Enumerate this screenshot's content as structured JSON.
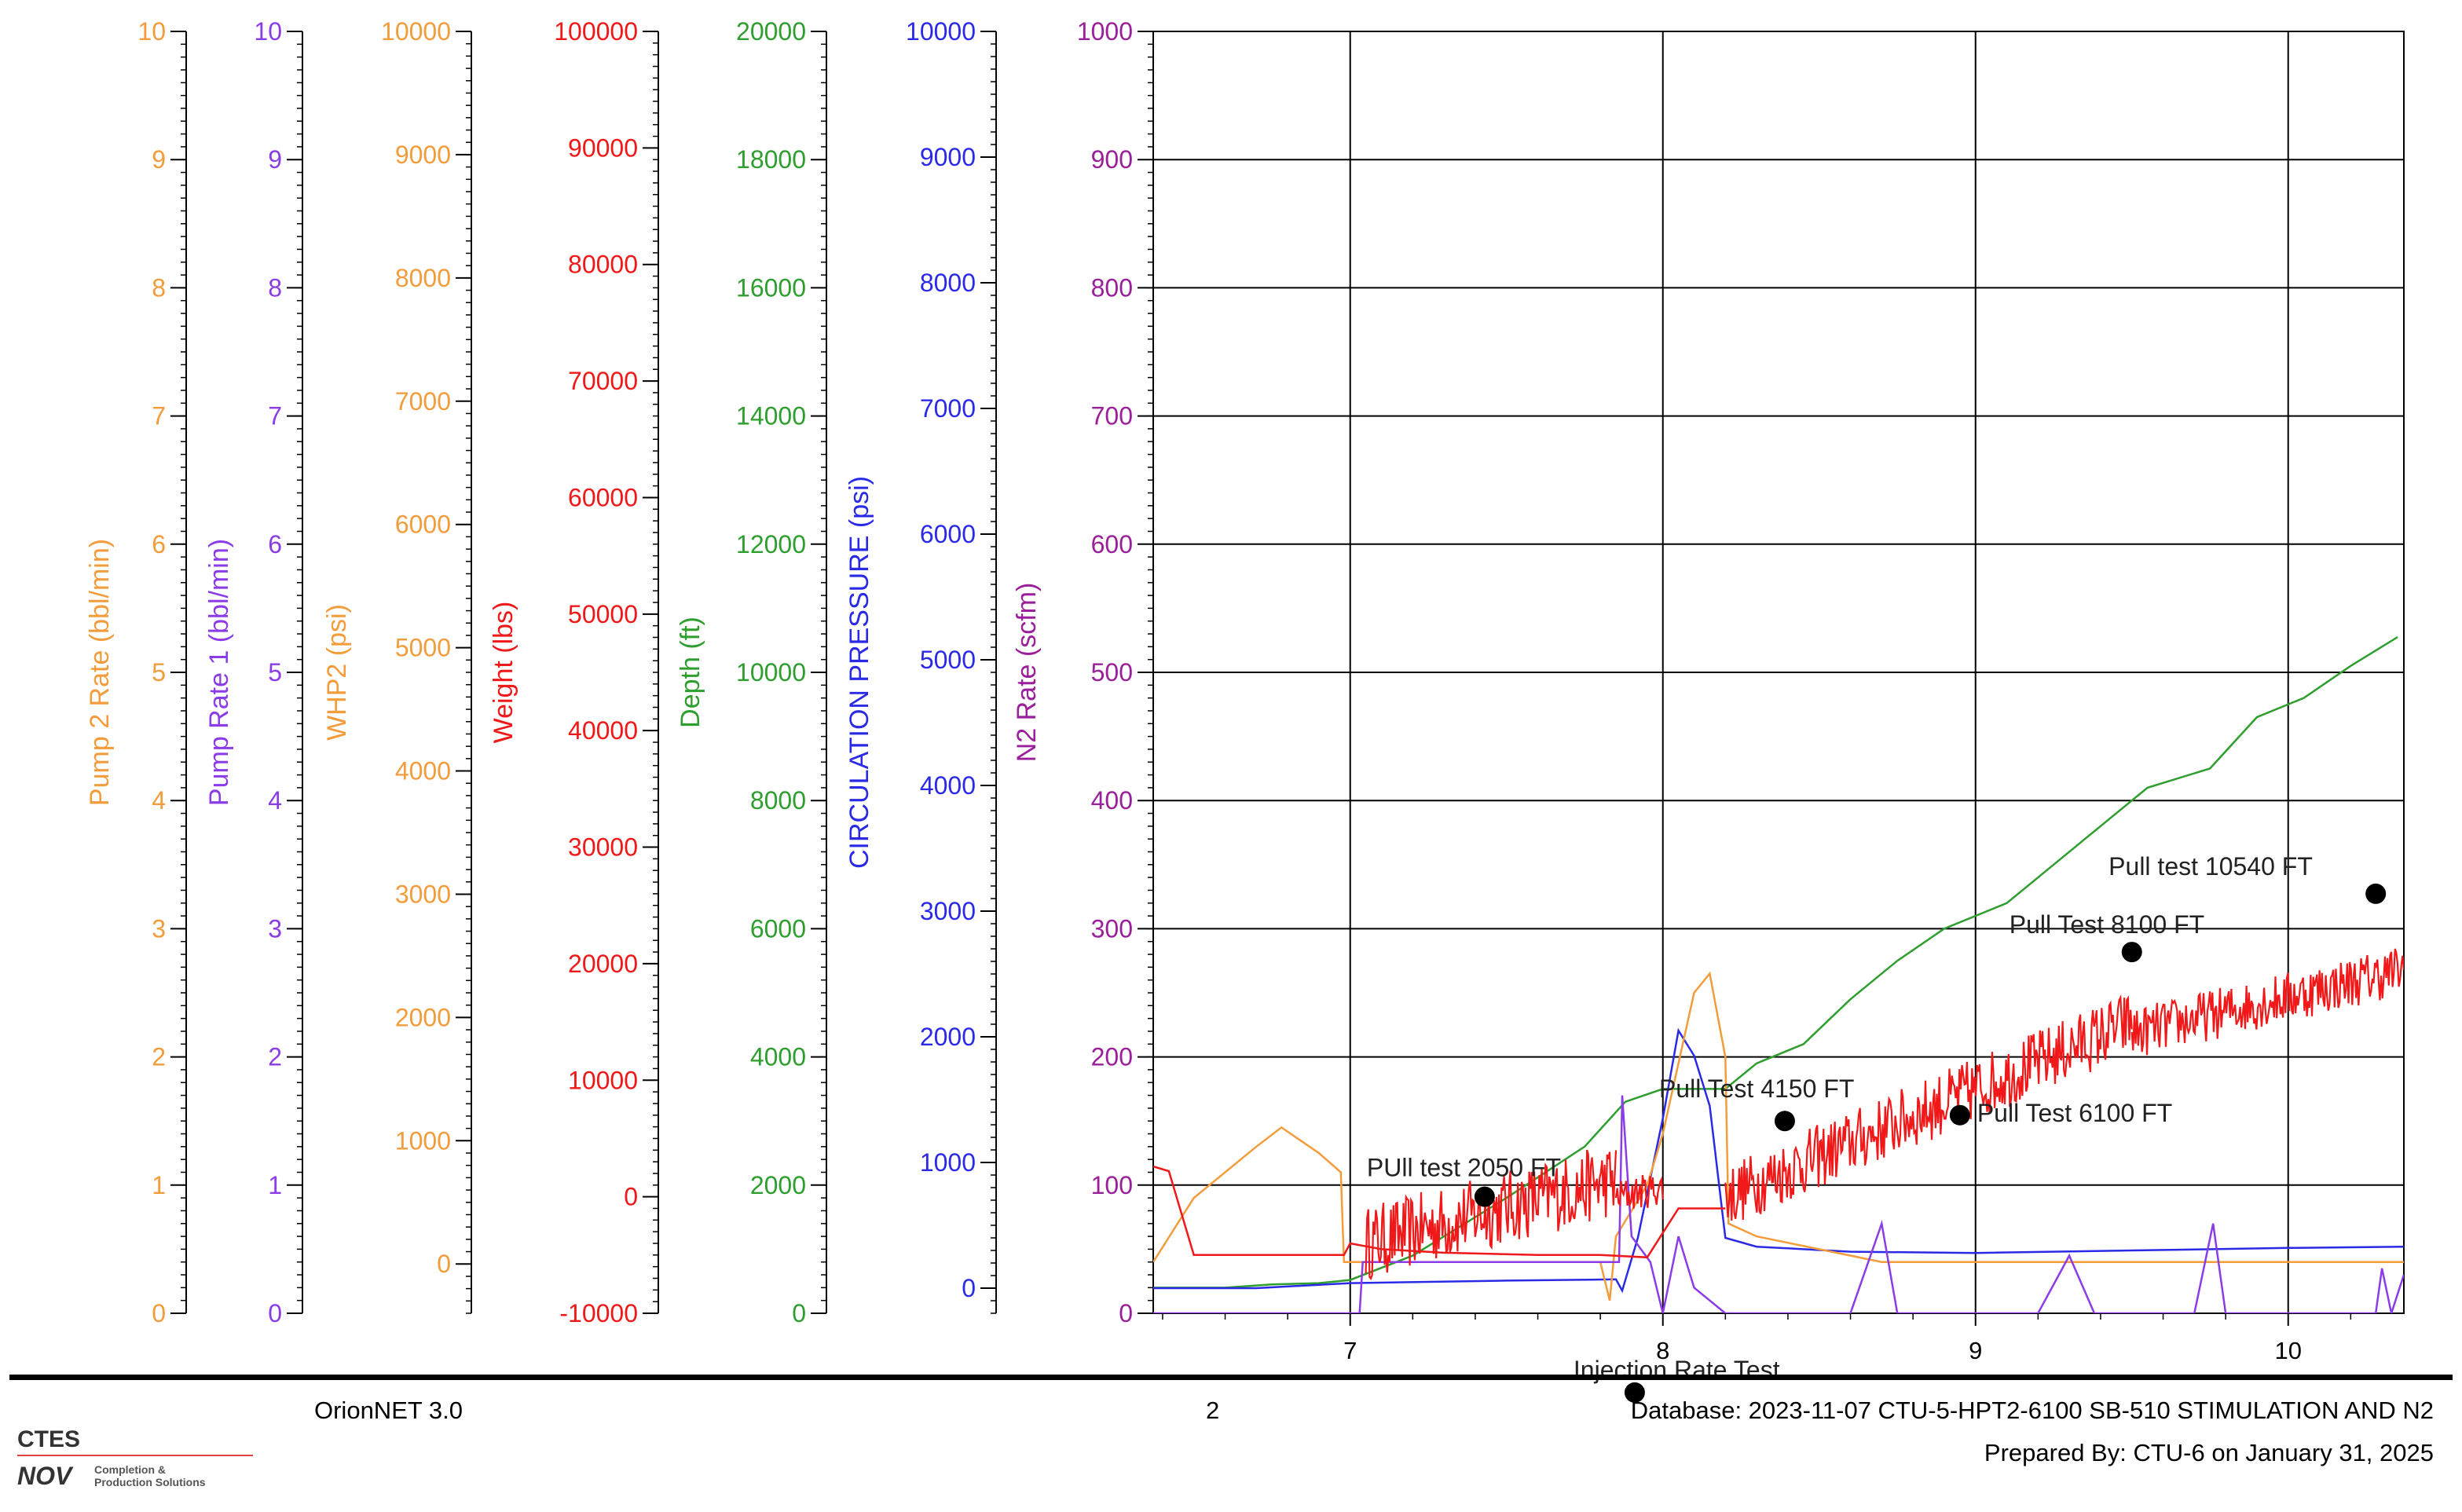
{
  "colors": {
    "orange": "#F39C3C",
    "violet": "#8B3CE6",
    "red": "#F01818",
    "green": "#2E9E2E",
    "blue": "#2A2AE6",
    "purple": "#9A1F9A",
    "grid": "#000000"
  },
  "chart_data": {
    "type": "line",
    "grid": true,
    "x_axis": {
      "ticks": [
        7,
        8,
        9,
        10
      ],
      "range": [
        6.37,
        10.37
      ]
    },
    "y_axes": [
      {
        "id": "pump2",
        "label": "Pump 2 Rate  (bbl/min)",
        "color": "orange",
        "min": 0,
        "max": 10,
        "ticks": [
          0,
          1,
          2,
          3,
          4,
          5,
          6,
          7,
          8,
          9,
          10
        ]
      },
      {
        "id": "pump1",
        "label": "Pump Rate 1  (bbl/min)",
        "color": "violet",
        "min": 0,
        "max": 10,
        "ticks": [
          0,
          1,
          2,
          3,
          4,
          5,
          6,
          7,
          8,
          9,
          10
        ]
      },
      {
        "id": "whp2",
        "label": "WHP2  (psi)",
        "color": "orange",
        "min": -400,
        "max": 10000,
        "ticks": [
          0,
          1000,
          2000,
          3000,
          4000,
          5000,
          6000,
          7000,
          8000,
          9000,
          10000
        ]
      },
      {
        "id": "weight",
        "label": "Weight  (lbs)",
        "color": "red",
        "min": -10000,
        "max": 100000,
        "ticks": [
          -10000,
          0,
          10000,
          20000,
          30000,
          40000,
          50000,
          60000,
          70000,
          80000,
          90000,
          100000
        ]
      },
      {
        "id": "depth",
        "label": "Depth  (ft)",
        "color": "green",
        "min": 0,
        "max": 20000,
        "ticks": [
          0,
          2000,
          4000,
          6000,
          8000,
          10000,
          12000,
          14000,
          16000,
          18000,
          20000
        ]
      },
      {
        "id": "circ",
        "label": "CIRCULATION PRESSURE  (psi)",
        "color": "blue",
        "min": -200,
        "max": 10000,
        "ticks": [
          0,
          1000,
          2000,
          3000,
          4000,
          5000,
          6000,
          7000,
          8000,
          9000,
          10000
        ]
      },
      {
        "id": "n2",
        "label": "N2 Rate  (scfm)",
        "color": "purple",
        "min": 0,
        "max": 1000,
        "ticks": [
          0,
          100,
          200,
          300,
          400,
          500,
          600,
          700,
          800,
          900,
          1000
        ]
      }
    ],
    "series": [
      {
        "axis": "depth",
        "color": "green",
        "kind": "line",
        "points": [
          [
            6.37,
            400
          ],
          [
            6.6,
            400
          ],
          [
            6.75,
            450
          ],
          [
            6.9,
            470
          ],
          [
            7.0,
            520
          ],
          [
            7.2,
            900
          ],
          [
            7.5,
            1800
          ],
          [
            7.75,
            2600
          ],
          [
            7.88,
            3300
          ],
          [
            8.0,
            3500
          ],
          [
            8.2,
            3500
          ],
          [
            8.3,
            3900
          ],
          [
            8.45,
            4200
          ],
          [
            8.6,
            4900
          ],
          [
            8.75,
            5500
          ],
          [
            8.9,
            6000
          ],
          [
            9.1,
            6400
          ],
          [
            9.25,
            7000
          ],
          [
            9.4,
            7600
          ],
          [
            9.55,
            8200
          ],
          [
            9.75,
            8500
          ],
          [
            9.9,
            9300
          ],
          [
            10.05,
            9600
          ],
          [
            10.2,
            10100
          ],
          [
            10.35,
            10550
          ]
        ]
      },
      {
        "axis": "circ",
        "color": "blue",
        "kind": "line",
        "points": [
          [
            6.37,
            0
          ],
          [
            6.7,
            0
          ],
          [
            7.0,
            40
          ],
          [
            7.5,
            60
          ],
          [
            7.85,
            70
          ],
          [
            7.87,
            -20
          ],
          [
            7.92,
            400
          ],
          [
            8.0,
            1350
          ],
          [
            8.05,
            2050
          ],
          [
            8.1,
            1850
          ],
          [
            8.15,
            1450
          ],
          [
            8.2,
            400
          ],
          [
            8.3,
            330
          ],
          [
            8.6,
            290
          ],
          [
            9.0,
            280
          ],
          [
            9.5,
            300
          ],
          [
            10.0,
            320
          ],
          [
            10.37,
            330
          ]
        ]
      },
      {
        "axis": "pump2",
        "color": "orange",
        "kind": "line",
        "points": [
          [
            6.37,
            0.4
          ],
          [
            6.5,
            0.9
          ],
          [
            6.7,
            1.3
          ],
          [
            6.78,
            1.45
          ],
          [
            6.9,
            1.25
          ],
          [
            6.97,
            1.1
          ],
          [
            6.98,
            0.4
          ],
          [
            7.2,
            0.4
          ],
          [
            7.8,
            0.4
          ],
          [
            7.83,
            0.1
          ],
          [
            7.85,
            0.6
          ],
          [
            7.9,
            0.8
          ],
          [
            7.95,
            1.0
          ],
          [
            8.0,
            1.4
          ],
          [
            8.1,
            2.5
          ],
          [
            8.15,
            2.65
          ],
          [
            8.2,
            2.0
          ],
          [
            8.21,
            0.7
          ],
          [
            8.3,
            0.6
          ],
          [
            8.7,
            0.4
          ],
          [
            10.37,
            0.4
          ]
        ]
      },
      {
        "axis": "n2",
        "color": "violet",
        "kind": "line",
        "points": [
          [
            6.37,
            0
          ],
          [
            6.6,
            0
          ],
          [
            7.03,
            0
          ],
          [
            7.04,
            40
          ],
          [
            7.1,
            40
          ],
          [
            7.8,
            40
          ],
          [
            7.86,
            40
          ],
          [
            7.87,
            170
          ],
          [
            7.9,
            60
          ],
          [
            7.96,
            40
          ],
          [
            8.0,
            0
          ],
          [
            8.05,
            60
          ],
          [
            8.1,
            20
          ],
          [
            8.2,
            0
          ],
          [
            8.22,
            0
          ],
          [
            8.6,
            0
          ],
          [
            8.7,
            70
          ],
          [
            8.75,
            0
          ],
          [
            9.2,
            0
          ],
          [
            9.3,
            45
          ],
          [
            9.38,
            0
          ],
          [
            9.7,
            0
          ],
          [
            9.76,
            70
          ],
          [
            9.8,
            0
          ],
          [
            10.28,
            0
          ],
          [
            10.3,
            35
          ],
          [
            10.33,
            0
          ],
          [
            10.37,
            30
          ]
        ]
      },
      {
        "axis": "weight",
        "color": "red",
        "kind": "line",
        "points": [
          [
            6.37,
            2600
          ],
          [
            6.42,
            2200
          ],
          [
            6.5,
            -5000
          ],
          [
            6.6,
            -5000
          ],
          [
            6.8,
            -5000
          ],
          [
            6.98,
            -5000
          ],
          [
            7.0,
            -4000
          ],
          [
            7.1,
            -4500
          ],
          [
            7.3,
            -4800
          ],
          [
            7.6,
            -5000
          ],
          [
            7.8,
            -5000
          ],
          [
            7.95,
            -5200
          ],
          [
            8.05,
            -1000
          ],
          [
            8.2,
            -1000
          ]
        ]
      },
      {
        "axis": "weight",
        "color": "red",
        "kind": "noisy",
        "segments": [
          {
            "x0": 7.05,
            "x1": 7.85,
            "y0": -4000,
            "y1": 1500,
            "amp": 3200
          },
          {
            "x0": 7.85,
            "x1": 8.0,
            "y0": 0,
            "y1": 800,
            "amp": 1500
          },
          {
            "x0": 8.2,
            "x1": 9.5,
            "y0": 0,
            "y1": 15000,
            "amp": 2800
          },
          {
            "x0": 9.5,
            "x1": 10.37,
            "y0": 14000,
            "y1": 19500,
            "amp": 2200
          }
        ]
      }
    ],
    "markers": [
      {
        "axis": "weight",
        "x": 7.43,
        "y": 0,
        "label": "PUll test 2050 FT"
      },
      {
        "axis": "weight",
        "x": 7.91,
        "y": -16800,
        "label": "Injection Rate Test"
      },
      {
        "axis": "weight",
        "x": 8.39,
        "y": 6500,
        "label": "Pull Test 4150 FT"
      },
      {
        "axis": "weight",
        "x": 8.95,
        "y": 7000,
        "label": "Pull Test 6100 FT"
      },
      {
        "axis": "weight",
        "x": 9.5,
        "y": 21000,
        "label": "Pull Test 8100 FT"
      },
      {
        "axis": "weight",
        "x": 10.28,
        "y": 26000,
        "label": "Pull test 10540 FT"
      }
    ]
  },
  "footer": {
    "software": "OrionNET 3.0",
    "page": "2",
    "database": "Database: 2023-11-07 CTU-5-HPT2-6100 SB-510 STIMULATION AND N2",
    "prepared": "Prepared By: CTU-6 on January 31, 2025"
  },
  "logo": {
    "company": "CTES",
    "brand": "NOV",
    "tagline_1": "Completion &",
    "tagline_2": "Production Solutions"
  }
}
